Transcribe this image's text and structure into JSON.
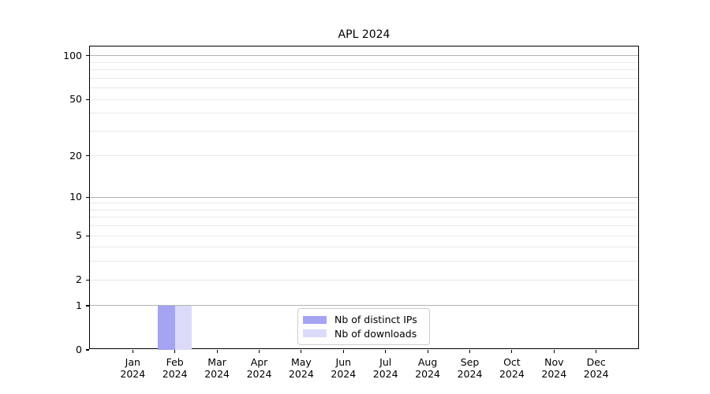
{
  "figure": {
    "background": "#ffffff"
  },
  "chart_data": {
    "type": "bar",
    "title": "APL 2024",
    "categories": [
      "Jan",
      "Feb",
      "Mar",
      "Apr",
      "May",
      "Jun",
      "Jul",
      "Aug",
      "Sep",
      "Oct",
      "Nov",
      "Dec"
    ],
    "year_label": "2024",
    "series": [
      {
        "name": "Nb of distinct IPs",
        "color": "#a4a4f2",
        "values": [
          0,
          1,
          0,
          0,
          0,
          0,
          0,
          0,
          0,
          0,
          0,
          0
        ]
      },
      {
        "name": "Nb of downloads",
        "color": "#dbdbf9",
        "values": [
          0,
          1,
          0,
          0,
          0,
          0,
          0,
          0,
          0,
          0,
          0,
          0
        ]
      }
    ],
    "xlabel": "",
    "ylabel": "",
    "y_scale": "log10(1+v)",
    "ylim": [
      0,
      116
    ],
    "y_ticks": [
      0,
      1,
      2,
      5,
      10,
      20,
      50,
      100
    ],
    "grid_major_values": [
      1,
      10,
      100
    ],
    "grid_minor_values": [
      2,
      3,
      4,
      5,
      6,
      7,
      8,
      9,
      20,
      30,
      40,
      50,
      60,
      70,
      80,
      90
    ],
    "grid_major_color": "#b3b3b3",
    "grid_minor_color": "#e8e8e8",
    "legend_position": "bottom-center",
    "grid": "horizontal-only"
  }
}
